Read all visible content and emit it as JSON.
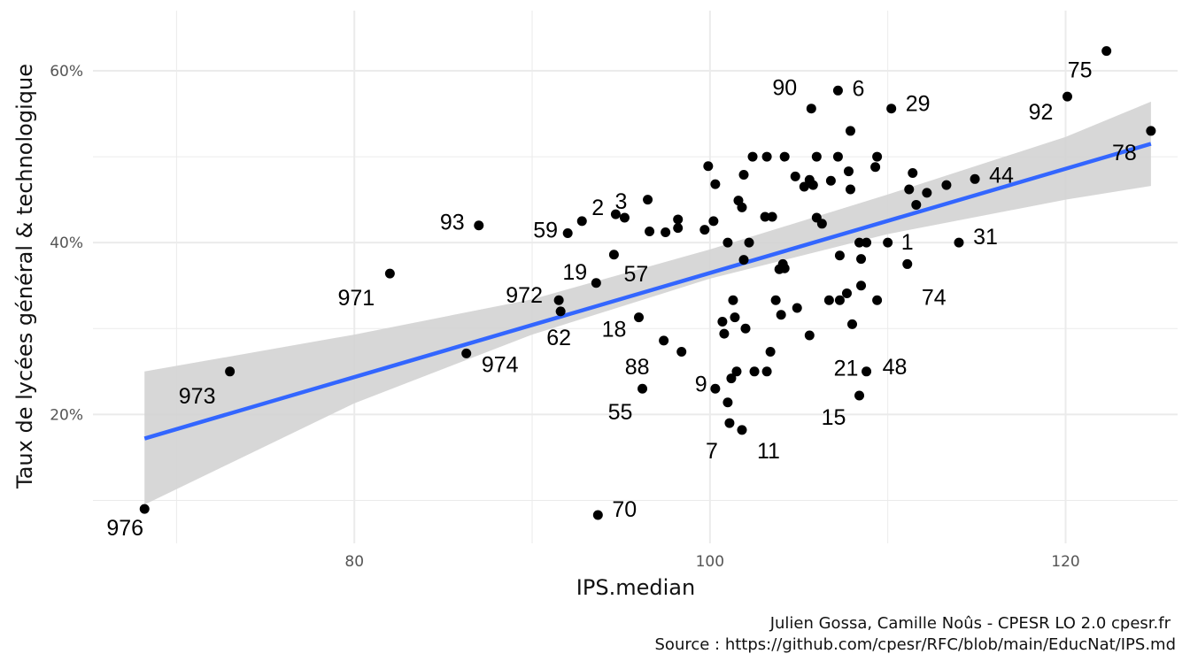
{
  "chart_data": {
    "type": "scatter",
    "xlabel": "IPS.median",
    "ylabel": "Taux de lycées général & technologique",
    "xlim": [
      65.3,
      126.3
    ],
    "ylim": [
      5,
      67
    ],
    "x_ticks": [
      {
        "value": 80,
        "label": "80"
      },
      {
        "value": 100,
        "label": "100"
      },
      {
        "value": 120,
        "label": "120"
      }
    ],
    "y_ticks": [
      {
        "value": 20,
        "label": "20%"
      },
      {
        "value": 40,
        "label": "40%"
      },
      {
        "value": 60,
        "label": "60%"
      }
    ],
    "x_minor_gridlines": [
      70,
      90,
      110
    ],
    "y_minor_gridlines": [
      10,
      30,
      50
    ],
    "grid": true,
    "colors": {
      "points": "#000000",
      "trend_line": "#3366FF",
      "confidence_band": "#D3D3D3",
      "grid": "#EBEBEB"
    },
    "trend": {
      "method": "linear",
      "x_start": 68.2,
      "y_start": 17.2,
      "x_end": 124.8,
      "y_end": 51.5,
      "band": [
        {
          "x": 68.2,
          "lower": 9.5,
          "upper": 25.0
        },
        {
          "x": 80.0,
          "lower": 21.3,
          "upper": 29.3
        },
        {
          "x": 90.0,
          "lower": 29.3,
          "upper": 33.4
        },
        {
          "x": 100.0,
          "lower": 35.8,
          "upper": 39.2
        },
        {
          "x": 110.0,
          "lower": 41.0,
          "upper": 45.6
        },
        {
          "x": 120.0,
          "lower": 45.0,
          "upper": 52.3
        },
        {
          "x": 124.8,
          "lower": 46.6,
          "upper": 56.4
        }
      ]
    },
    "points": [
      {
        "x": 68.2,
        "y": 9.0,
        "label": "976"
      },
      {
        "x": 73.0,
        "y": 25.0,
        "label": "973"
      },
      {
        "x": 82.0,
        "y": 36.4,
        "label": "971"
      },
      {
        "x": 86.3,
        "y": 27.1,
        "label": "974"
      },
      {
        "x": 87.0,
        "y": 42.0,
        "label": "93"
      },
      {
        "x": 91.5,
        "y": 33.3,
        "label": "972"
      },
      {
        "x": 91.6,
        "y": 32.0,
        "label": "62"
      },
      {
        "x": 92.0,
        "y": 41.1,
        "label": "59"
      },
      {
        "x": 92.8,
        "y": 42.5,
        "label": "2"
      },
      {
        "x": 93.6,
        "y": 35.3,
        "label": "19"
      },
      {
        "x": 93.7,
        "y": 8.3,
        "label": "70"
      },
      {
        "x": 94.6,
        "y": 38.6,
        "label": "57"
      },
      {
        "x": 94.7,
        "y": 43.3,
        "label": "3"
      },
      {
        "x": 95.2,
        "y": 42.9
      },
      {
        "x": 96.0,
        "y": 31.3,
        "label": "18"
      },
      {
        "x": 96.2,
        "y": 23.0,
        "label": "55"
      },
      {
        "x": 96.5,
        "y": 45.0
      },
      {
        "x": 96.6,
        "y": 41.3
      },
      {
        "x": 97.4,
        "y": 28.6,
        "label": "88"
      },
      {
        "x": 97.5,
        "y": 41.2
      },
      {
        "x": 98.2,
        "y": 42.7
      },
      {
        "x": 98.2,
        "y": 41.7
      },
      {
        "x": 98.4,
        "y": 27.3,
        "label": "9"
      },
      {
        "x": 99.7,
        "y": 41.5
      },
      {
        "x": 99.9,
        "y": 48.9
      },
      {
        "x": 100.2,
        "y": 42.5
      },
      {
        "x": 100.3,
        "y": 23.0
      },
      {
        "x": 100.3,
        "y": 46.8
      },
      {
        "x": 100.7,
        "y": 30.8
      },
      {
        "x": 100.8,
        "y": 29.4
      },
      {
        "x": 101.0,
        "y": 40.0
      },
      {
        "x": 101.0,
        "y": 21.4
      },
      {
        "x": 101.1,
        "y": 19.0,
        "label": "7"
      },
      {
        "x": 101.2,
        "y": 24.2
      },
      {
        "x": 101.3,
        "y": 33.3
      },
      {
        "x": 101.4,
        "y": 31.3
      },
      {
        "x": 101.5,
        "y": 25.0
      },
      {
        "x": 101.6,
        "y": 44.9
      },
      {
        "x": 101.8,
        "y": 44.1
      },
      {
        "x": 101.8,
        "y": 18.2,
        "label": "11"
      },
      {
        "x": 101.9,
        "y": 38.0
      },
      {
        "x": 101.9,
        "y": 47.9
      },
      {
        "x": 102.0,
        "y": 30.0
      },
      {
        "x": 102.2,
        "y": 40.0
      },
      {
        "x": 102.4,
        "y": 50.0
      },
      {
        "x": 102.5,
        "y": 25.0
      },
      {
        "x": 103.2,
        "y": 50.0
      },
      {
        "x": 103.1,
        "y": 43.0
      },
      {
        "x": 103.2,
        "y": 25.0
      },
      {
        "x": 103.4,
        "y": 27.3
      },
      {
        "x": 103.5,
        "y": 43.0
      },
      {
        "x": 103.7,
        "y": 33.3
      },
      {
        "x": 103.9,
        "y": 36.9
      },
      {
        "x": 104.0,
        "y": 31.6
      },
      {
        "x": 104.1,
        "y": 37.5
      },
      {
        "x": 104.2,
        "y": 37.0
      },
      {
        "x": 104.2,
        "y": 50.0
      },
      {
        "x": 104.8,
        "y": 47.7
      },
      {
        "x": 104.9,
        "y": 32.4
      },
      {
        "x": 105.3,
        "y": 46.5
      },
      {
        "x": 105.6,
        "y": 47.3
      },
      {
        "x": 105.6,
        "y": 29.2
      },
      {
        "x": 105.7,
        "y": 55.6,
        "label": "90"
      },
      {
        "x": 105.8,
        "y": 46.7
      },
      {
        "x": 106.0,
        "y": 42.9
      },
      {
        "x": 106.0,
        "y": 50.0
      },
      {
        "x": 106.3,
        "y": 42.2
      },
      {
        "x": 106.7,
        "y": 33.3
      },
      {
        "x": 106.8,
        "y": 47.2
      },
      {
        "x": 107.2,
        "y": 50.0
      },
      {
        "x": 107.2,
        "y": 57.7,
        "label": "6"
      },
      {
        "x": 107.3,
        "y": 38.5
      },
      {
        "x": 107.3,
        "y": 33.3
      },
      {
        "x": 107.7,
        "y": 34.1
      },
      {
        "x": 107.8,
        "y": 48.3
      },
      {
        "x": 107.9,
        "y": 46.2
      },
      {
        "x": 107.9,
        "y": 53.0
      },
      {
        "x": 108.0,
        "y": 30.5,
        "label": "21"
      },
      {
        "x": 108.4,
        "y": 40.0
      },
      {
        "x": 108.4,
        "y": 22.2,
        "label": "15"
      },
      {
        "x": 108.5,
        "y": 35.0
      },
      {
        "x": 108.5,
        "y": 38.1
      },
      {
        "x": 108.8,
        "y": 40.0
      },
      {
        "x": 108.8,
        "y": 25.0,
        "label": "48"
      },
      {
        "x": 109.3,
        "y": 48.8
      },
      {
        "x": 109.4,
        "y": 33.3
      },
      {
        "x": 109.4,
        "y": 50.0
      },
      {
        "x": 110.0,
        "y": 40.0,
        "label": "1"
      },
      {
        "x": 110.2,
        "y": 55.6,
        "label": "29"
      },
      {
        "x": 111.1,
        "y": 37.5,
        "label": "74"
      },
      {
        "x": 111.2,
        "y": 46.2
      },
      {
        "x": 111.4,
        "y": 48.1
      },
      {
        "x": 111.6,
        "y": 44.4
      },
      {
        "x": 112.2,
        "y": 45.8
      },
      {
        "x": 113.3,
        "y": 46.7
      },
      {
        "x": 114.0,
        "y": 40.0,
        "label": "31"
      },
      {
        "x": 114.9,
        "y": 47.4,
        "label": "44"
      },
      {
        "x": 120.1,
        "y": 57.0,
        "label": "92"
      },
      {
        "x": 122.3,
        "y": 62.3,
        "label": "75"
      },
      {
        "x": 124.8,
        "y": 53.0,
        "label": "78"
      }
    ]
  },
  "caption": {
    "line1": "Julien Gossa, Camille Noûs - CPESR LO 2.0 cpesr.fr",
    "line2": "Source : https://github.com/cpesr/RFC/blob/main/EducNat/IPS.md"
  }
}
